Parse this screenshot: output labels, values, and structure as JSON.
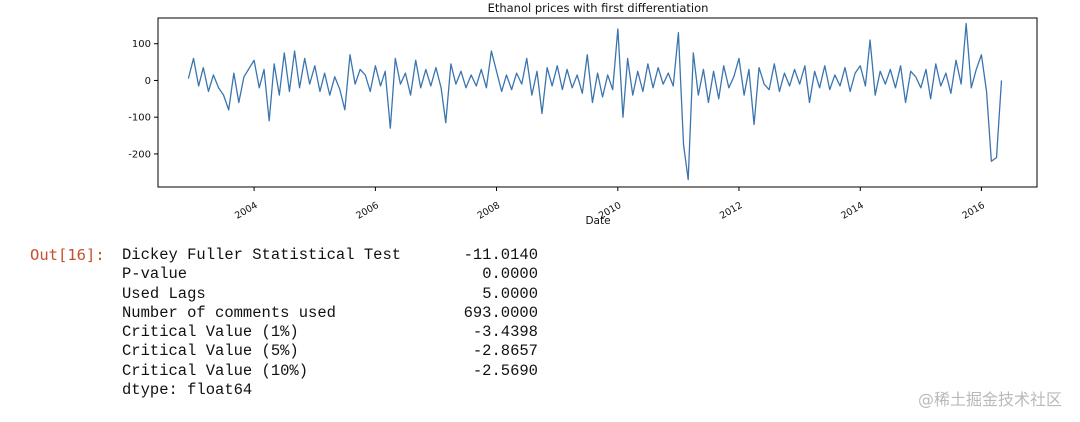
{
  "notebook": {
    "out_prompt": "Out[16]:",
    "rows": [
      {
        "label": "Dickey Fuller Statistical Test",
        "value": "-11.0140"
      },
      {
        "label": "P-value",
        "value": "0.0000"
      },
      {
        "label": "Used Lags",
        "value": "5.0000"
      },
      {
        "label": "Number of comments used",
        "value": "693.0000"
      },
      {
        "label": "Critical Value (1%)",
        "value": "-3.4398"
      },
      {
        "label": "Critical Value (5%)",
        "value": "-2.8657"
      },
      {
        "label": "Critical Value (10%)",
        "value": "-2.5690"
      }
    ],
    "dtype": "dtype: float64",
    "watermark": "@稀土掘金技术社区"
  },
  "chart_data": {
    "type": "line",
    "title": "Ethanol prices with first differentiation",
    "xlabel": "Date",
    "ylabel": "",
    "x_ticks": [
      "2004",
      "2006",
      "2008",
      "2010",
      "2012",
      "2014",
      "2016"
    ],
    "y_ticks": [
      100,
      0,
      -100,
      -200
    ],
    "xlim": [
      "2002-06-01",
      "2016-12-01"
    ],
    "ylim": [
      -290,
      170
    ],
    "grid": false,
    "line_color": "#3b75af",
    "series": [
      {
        "x": [
          "2002-12-01",
          "2003-01-01",
          "2003-02-01",
          "2003-03-01",
          "2003-04-01",
          "2003-05-01",
          "2003-06-01",
          "2003-07-01",
          "2003-08-01",
          "2003-09-01",
          "2003-10-01",
          "2003-11-01",
          "2004-01-01",
          "2004-02-01",
          "2004-03-01",
          "2004-04-01",
          "2004-05-01",
          "2004-06-01",
          "2004-07-01",
          "2004-08-01",
          "2004-09-01",
          "2004-10-01",
          "2004-11-01",
          "2004-12-01",
          "2005-01-01",
          "2005-02-01",
          "2005-03-01",
          "2005-04-01",
          "2005-05-01",
          "2005-06-01",
          "2005-07-01",
          "2005-08-01",
          "2005-09-01",
          "2005-10-01",
          "2005-11-01",
          "2005-12-01",
          "2006-01-01",
          "2006-02-01",
          "2006-03-01",
          "2006-04-01",
          "2006-05-01",
          "2006-06-01",
          "2006-07-01",
          "2006-08-01",
          "2006-09-01",
          "2006-10-01",
          "2006-11-01",
          "2006-12-01",
          "2007-01-01",
          "2007-02-01",
          "2007-03-01",
          "2007-04-01",
          "2007-05-01",
          "2007-06-01",
          "2007-07-01",
          "2007-08-01",
          "2007-09-01",
          "2007-10-01",
          "2007-11-01",
          "2007-12-01",
          "2008-01-01",
          "2008-02-01",
          "2008-03-01",
          "2008-04-01",
          "2008-05-01",
          "2008-06-01",
          "2008-07-01",
          "2008-08-01",
          "2008-09-01",
          "2008-10-01",
          "2008-11-01",
          "2008-12-01",
          "2009-01-01",
          "2009-02-01",
          "2009-03-01",
          "2009-04-01",
          "2009-05-01",
          "2009-06-01",
          "2009-07-01",
          "2009-08-01",
          "2009-09-01",
          "2009-10-01",
          "2009-11-01",
          "2009-12-01",
          "2010-01-01",
          "2010-02-01",
          "2010-03-01",
          "2010-04-01",
          "2010-05-01",
          "2010-06-01",
          "2010-07-01",
          "2010-08-01",
          "2010-09-01",
          "2010-10-01",
          "2010-11-01",
          "2010-12-01",
          "2011-01-01",
          "2011-02-01",
          "2011-03-01",
          "2011-04-01",
          "2011-05-01",
          "2011-06-01",
          "2011-07-01",
          "2011-08-01",
          "2011-09-01",
          "2011-10-01",
          "2011-11-01",
          "2011-12-01",
          "2012-01-01",
          "2012-02-01",
          "2012-03-01",
          "2012-04-01",
          "2012-05-01",
          "2012-06-01",
          "2012-07-01",
          "2012-08-01",
          "2012-09-01",
          "2012-10-01",
          "2012-11-01",
          "2012-12-01",
          "2013-01-01",
          "2013-02-01",
          "2013-03-01",
          "2013-04-01",
          "2013-05-01",
          "2013-06-01",
          "2013-07-01",
          "2013-08-01",
          "2013-09-01",
          "2013-10-01",
          "2013-11-01",
          "2013-12-01",
          "2014-01-01",
          "2014-02-01",
          "2014-03-01",
          "2014-04-01",
          "2014-05-01",
          "2014-06-01",
          "2014-07-01",
          "2014-08-01",
          "2014-09-01",
          "2014-10-01",
          "2014-11-01",
          "2014-12-01",
          "2015-01-01",
          "2015-02-01",
          "2015-03-01",
          "2015-04-01",
          "2015-05-01",
          "2015-06-01",
          "2015-07-01",
          "2015-08-01",
          "2015-09-01",
          "2015-10-01",
          "2015-11-01",
          "2015-12-01",
          "2016-01-01",
          "2016-02-01",
          "2016-03-01",
          "2016-04-01",
          "2016-05-01"
        ],
        "y": [
          5,
          60,
          -15,
          35,
          -30,
          15,
          -20,
          -40,
          -80,
          20,
          -60,
          10,
          55,
          -20,
          30,
          -110,
          45,
          -40,
          75,
          -30,
          80,
          -20,
          60,
          -10,
          40,
          -30,
          20,
          -40,
          10,
          -25,
          -80,
          70,
          -10,
          30,
          15,
          -30,
          40,
          -15,
          25,
          -130,
          60,
          -10,
          20,
          -40,
          55,
          -20,
          30,
          -15,
          35,
          -20,
          -115,
          45,
          -10,
          25,
          -20,
          15,
          -15,
          30,
          -20,
          80,
          25,
          -30,
          15,
          -25,
          20,
          -10,
          60,
          -40,
          25,
          -90,
          35,
          -15,
          40,
          -25,
          30,
          -20,
          15,
          -35,
          70,
          -60,
          20,
          -45,
          15,
          -25,
          140,
          -100,
          60,
          -40,
          25,
          -30,
          45,
          -20,
          35,
          -10,
          20,
          -15,
          130,
          -175,
          -270,
          75,
          -40,
          30,
          -60,
          25,
          -50,
          40,
          -20,
          10,
          60,
          -40,
          30,
          -120,
          35,
          -10,
          -25,
          45,
          -30,
          20,
          -15,
          30,
          -10,
          40,
          -60,
          25,
          -20,
          40,
          -25,
          15,
          -15,
          35,
          -30,
          20,
          40,
          -15,
          110,
          -40,
          25,
          -10,
          30,
          -20,
          40,
          -60,
          25,
          10,
          -20,
          30,
          -50,
          45,
          -15,
          20,
          -35,
          55,
          -10,
          155,
          -20,
          30,
          70,
          -30,
          -220,
          -210,
          0
        ]
      }
    ]
  }
}
